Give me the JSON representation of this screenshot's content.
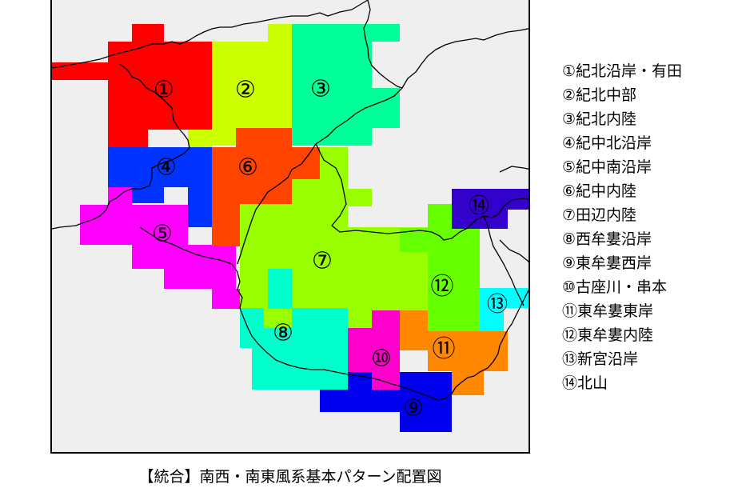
{
  "map": {
    "background": "#efefef",
    "regions": [
      {
        "id": 1,
        "label": "①",
        "color": "#ff0000"
      },
      {
        "id": 2,
        "label": "②",
        "color": "#ccff00"
      },
      {
        "id": 3,
        "label": "③",
        "color": "#00ff99"
      },
      {
        "id": 4,
        "label": "④",
        "color": "#0033ff"
      },
      {
        "id": 5,
        "label": "⑤",
        "color": "#ff00ff"
      },
      {
        "id": 6,
        "label": "⑥",
        "color": "#ff4400"
      },
      {
        "id": 7,
        "label": "⑦",
        "color": "#99ff00"
      },
      {
        "id": 8,
        "label": "⑧",
        "color": "#00ffcc"
      },
      {
        "id": 9,
        "label": "⑨",
        "color": "#0000ee"
      },
      {
        "id": 10,
        "label": "⑩",
        "color": "#ff00cc"
      },
      {
        "id": 11,
        "label": "⑪",
        "color": "#ff8800"
      },
      {
        "id": 12,
        "label": "⑫",
        "color": "#66ff00"
      },
      {
        "id": 13,
        "label": "⑬",
        "color": "#00ffff"
      },
      {
        "id": 14,
        "label": "⑭",
        "color": "#3300cc"
      }
    ]
  },
  "legend": {
    "items": [
      "①紀北沿岸・有田",
      "②紀北中部",
      "③紀北内陸",
      "④紀中北沿岸",
      "⑤紀中南沿岸",
      "⑥紀中内陸",
      "⑦田辺内陸",
      "⑧西牟婁沿岸",
      "⑨東牟婁西岸",
      "⑩古座川・串本",
      "⑪東牟婁東岸",
      "⑫東牟婁内陸",
      "⑬新宮沿岸",
      "⑭北山"
    ]
  },
  "caption": "【統合】南西・南東風系基本パターン配置図"
}
